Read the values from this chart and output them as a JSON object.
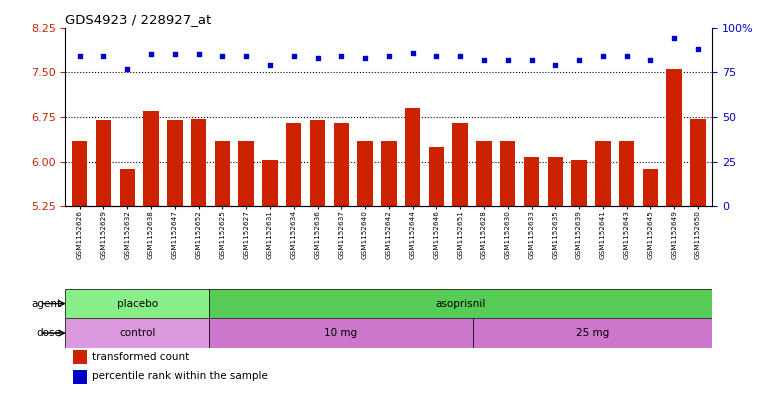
{
  "title": "GDS4923 / 228927_at",
  "samples": [
    "GSM1152626",
    "GSM1152629",
    "GSM1152632",
    "GSM1152638",
    "GSM1152647",
    "GSM1152652",
    "GSM1152625",
    "GSM1152627",
    "GSM1152631",
    "GSM1152634",
    "GSM1152636",
    "GSM1152637",
    "GSM1152640",
    "GSM1152642",
    "GSM1152644",
    "GSM1152646",
    "GSM1152651",
    "GSM1152628",
    "GSM1152630",
    "GSM1152633",
    "GSM1152635",
    "GSM1152639",
    "GSM1152641",
    "GSM1152643",
    "GSM1152645",
    "GSM1152649",
    "GSM1152650"
  ],
  "bar_values": [
    6.35,
    6.7,
    5.88,
    6.85,
    6.7,
    6.72,
    6.35,
    6.35,
    6.02,
    6.65,
    6.7,
    6.65,
    6.35,
    6.35,
    6.9,
    6.25,
    6.65,
    6.35,
    6.35,
    6.07,
    6.07,
    6.02,
    6.35,
    6.35,
    5.88,
    7.55,
    6.72
  ],
  "percentile_values": [
    84,
    84,
    77,
    85,
    85,
    85,
    84,
    84,
    79,
    84,
    83,
    84,
    83,
    84,
    86,
    84,
    84,
    82,
    82,
    82,
    79,
    82,
    84,
    84,
    82,
    94,
    88
  ],
  "ylim_left": [
    5.25,
    8.25
  ],
  "ylim_right": [
    0,
    100
  ],
  "yticks_left": [
    5.25,
    6.0,
    6.75,
    7.5,
    8.25
  ],
  "yticks_right": [
    0,
    25,
    50,
    75,
    100
  ],
  "hlines": [
    6.0,
    6.75,
    7.5
  ],
  "bar_color": "#CC2200",
  "dot_color": "#0000CC",
  "agent_groups": [
    {
      "label": "placebo",
      "start": 0,
      "end": 6,
      "color": "#88EE88"
    },
    {
      "label": "asoprisnil",
      "start": 6,
      "end": 27,
      "color": "#55CC55"
    }
  ],
  "dose_groups": [
    {
      "label": "control",
      "start": 0,
      "end": 6,
      "color": "#DD99DD"
    },
    {
      "label": "10 mg",
      "start": 6,
      "end": 17,
      "color": "#CC77CC"
    },
    {
      "label": "25 mg",
      "start": 17,
      "end": 27,
      "color": "#CC77CC"
    }
  ],
  "legend_items": [
    {
      "color": "#CC2200",
      "label": "transformed count"
    },
    {
      "color": "#0000CC",
      "label": "percentile rank within the sample"
    }
  ],
  "bg_color": "#E8E8E8"
}
